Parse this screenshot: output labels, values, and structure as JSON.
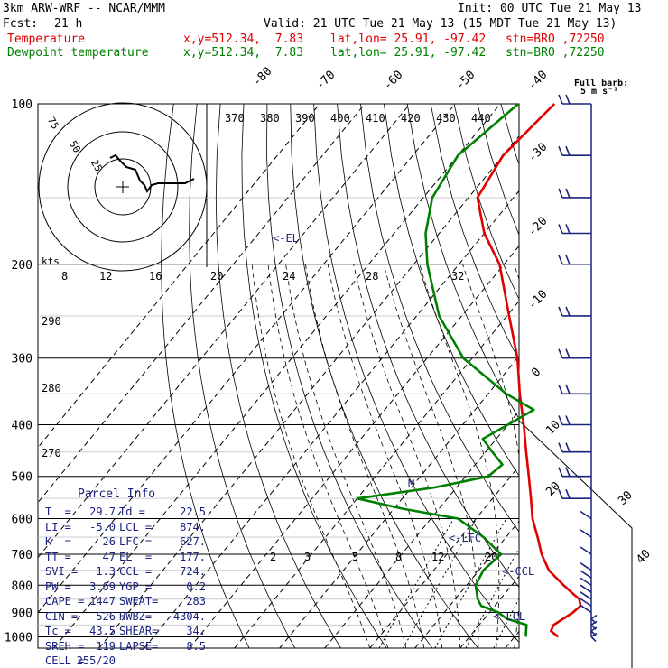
{
  "header": {
    "model": "3km ARW-WRF -- NCAR/MMM",
    "init": "Init: 00 UTC Tue 21 May 13",
    "fcst_label": "Fcst:",
    "fcst_value": "21 h",
    "valid": "Valid: 21 UTC Tue 21 May 13 (15 MDT Tue 21 May 13)",
    "temp_line": {
      "name": "Temperature",
      "xy": "x,y=512.34,  7.83",
      "latlon": "lat,lon= 25.91, -97.42",
      "stn": "stn=BRO ,72250",
      "color": "#e00000"
    },
    "dewp_line": {
      "name": "Dewpoint temperature",
      "xy": "x,y=512.34,  7.83",
      "latlon": "lat,lon= 25.91, -97.42",
      "stn": "stn=BRO ,72250",
      "color": "#008000"
    }
  },
  "barb_legend": {
    "line1": "Full barb:",
    "line2": "5 m s⁻¹"
  },
  "hodograph": {
    "unit": "kts",
    "ring_labels": [
      "75",
      "50",
      "25"
    ]
  },
  "parcel_info": {
    "title": "Parcel Info",
    "rows": [
      [
        "T  =",
        "29.7",
        "Td =",
        "22.5"
      ],
      [
        "LI =",
        "-5.0",
        "LCL =",
        "874."
      ],
      [
        "K  =",
        "26",
        "LFC =",
        "627."
      ],
      [
        "TT =",
        "47",
        "EL  =",
        "177."
      ],
      [
        "SVI =",
        "1.3",
        "CCL =",
        "724."
      ],
      [
        "PW =",
        "3.69",
        "YGP =",
        "0.2"
      ],
      [
        "CAPE =",
        "1447",
        "SWEAT=",
        "283"
      ],
      [
        "CIN =",
        "-526",
        "HWBZ=",
        "4304."
      ],
      [
        "Tc =",
        "43.5",
        "SHEAR=",
        "34."
      ],
      [
        "SREH =",
        "119",
        "LAPSE=",
        "8.5"
      ],
      [
        "CELL =",
        "255/20",
        "",
        ""
      ]
    ]
  },
  "level_markers": {
    "el": "<-EL",
    "lfc": "<-LFC",
    "ccl": "<-CCL",
    "lcl": "<-LCL",
    "m": "M"
  },
  "chart_data": {
    "type": "line",
    "title": "",
    "xlabel": "",
    "ylabel": "",
    "y_axis": "pressure (hPa), log scale",
    "ylim": [
      1000,
      100
    ],
    "pressure_ticks": [
      100,
      200,
      300,
      400,
      500,
      600,
      700,
      800,
      900,
      1000
    ],
    "isotherm_labels_top": [
      "-80",
      "-70",
      "-60",
      "-50",
      "-40"
    ],
    "isotherm_labels_right": [
      "-30",
      "-20",
      "-10",
      "0",
      "10",
      "20",
      "30",
      "40"
    ],
    "theta_labels": [
      "370",
      "380",
      "390",
      "400",
      "410",
      "420",
      "430",
      "440"
    ],
    "theta_labels_left": [
      "290",
      "280",
      "270"
    ],
    "mixing_ratio_labels_upper": [
      "8",
      "12",
      "16",
      "20",
      "24",
      "28",
      "32"
    ],
    "mixing_ratio_labels_lower": [
      "2",
      "3",
      "5",
      "8",
      "12",
      "20"
    ],
    "series": [
      {
        "name": "Temperature",
        "color": "#e00000",
        "points": [
          [
            1000,
            29.7
          ],
          [
            975,
            27.0
          ],
          [
            950,
            26.5
          ],
          [
            925,
            27.5
          ],
          [
            900,
            28.5
          ],
          [
            875,
            29.0
          ],
          [
            850,
            27.5
          ],
          [
            825,
            24.5
          ],
          [
            800,
            21.5
          ],
          [
            775,
            18.5
          ],
          [
            750,
            15.5
          ],
          [
            700,
            11.0
          ],
          [
            650,
            7.0
          ],
          [
            600,
            2.5
          ],
          [
            550,
            -1.5
          ],
          [
            500,
            -6.0
          ],
          [
            450,
            -11.0
          ],
          [
            400,
            -16.5
          ],
          [
            350,
            -23.0
          ],
          [
            300,
            -30.0
          ],
          [
            250,
            -39.5
          ],
          [
            200,
            -51.0
          ],
          [
            175,
            -60.0
          ],
          [
            150,
            -68.0
          ],
          [
            125,
            -70.0
          ],
          [
            100,
            -68.0
          ]
        ]
      },
      {
        "name": "Dewpoint temperature",
        "color": "#008000",
        "points": [
          [
            1000,
            22.5
          ],
          [
            975,
            21.5
          ],
          [
            950,
            20.5
          ],
          [
            925,
            15.0
          ],
          [
            900,
            12.0
          ],
          [
            875,
            7.0
          ],
          [
            850,
            5.0
          ],
          [
            800,
            2.0
          ],
          [
            750,
            1.0
          ],
          [
            700,
            2.0
          ],
          [
            650,
            -5.0
          ],
          [
            600,
            -14.0
          ],
          [
            575,
            -28.0
          ],
          [
            550,
            -40.0
          ],
          [
            525,
            -25.0
          ],
          [
            500,
            -15.0
          ],
          [
            475,
            -14.0
          ],
          [
            450,
            -18.5
          ],
          [
            425,
            -23.0
          ],
          [
            400,
            -20.0
          ],
          [
            375,
            -17.0
          ],
          [
            350,
            -26.0
          ],
          [
            300,
            -42.0
          ],
          [
            250,
            -55.0
          ],
          [
            200,
            -67.0
          ],
          [
            175,
            -73.0
          ],
          [
            150,
            -78.0
          ],
          [
            125,
            -80.0
          ],
          [
            100,
            -76.0
          ]
        ]
      }
    ],
    "hodograph_trace": {
      "color": "#000000",
      "unit": "kts"
    },
    "wind_barbs": {
      "color": "#1a237e",
      "pressures": [
        1000,
        975,
        950,
        925,
        900,
        875,
        850,
        825,
        800,
        775,
        750,
        700,
        650,
        600,
        550,
        500,
        450,
        400,
        350,
        300,
        250,
        200,
        175,
        150,
        125,
        100
      ]
    }
  }
}
